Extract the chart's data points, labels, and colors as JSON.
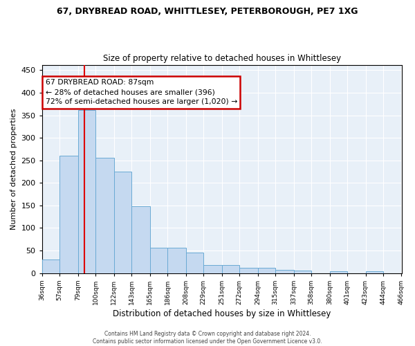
{
  "title": "67, DRYBREAD ROAD, WHITTLESEY, PETERBOROUGH, PE7 1XG",
  "subtitle": "Size of property relative to detached houses in Whittlesey",
  "xlabel": "Distribution of detached houses by size in Whittlesey",
  "ylabel": "Number of detached properties",
  "bin_edges": [
    36,
    57,
    79,
    100,
    122,
    143,
    165,
    186,
    208,
    229,
    251,
    272,
    294,
    315,
    337,
    358,
    380,
    401,
    423,
    444,
    466
  ],
  "bar_heights": [
    30,
    260,
    362,
    255,
    225,
    148,
    57,
    57,
    45,
    18,
    18,
    11,
    11,
    7,
    6,
    0,
    4,
    0,
    4,
    0
  ],
  "bar_color": "#c5d9f0",
  "bar_edge_color": "#6aaad4",
  "property_size": 87,
  "red_line_color": "#dd0000",
  "annotation_title": "67 DRYBREAD ROAD: 87sqm",
  "annotation_line1": "← 28% of detached houses are smaller (396)",
  "annotation_line2": "72% of semi-detached houses are larger (1,020) →",
  "annotation_box_color": "#cc0000",
  "ylim": [
    0,
    462
  ],
  "yticks": [
    0,
    50,
    100,
    150,
    200,
    250,
    300,
    350,
    400,
    450
  ],
  "footer1": "Contains HM Land Registry data © Crown copyright and database right 2024.",
  "footer2": "Contains public sector information licensed under the Open Government Licence v3.0.",
  "background_color": "#e8f0f8"
}
